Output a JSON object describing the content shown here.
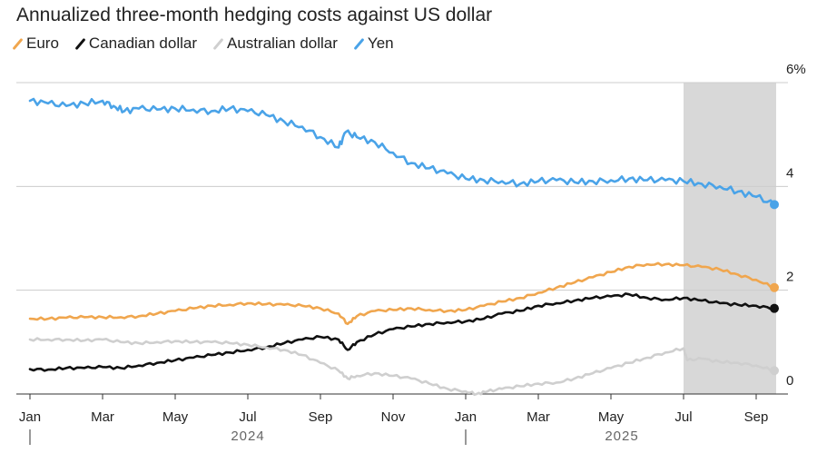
{
  "title": "Annualized three-month hedging costs against US dollar",
  "legend": [
    {
      "label": "Euro",
      "color": "#f0a64e"
    },
    {
      "label": "Canadian dollar",
      "color": "#111111"
    },
    {
      "label": "Australian dollar",
      "color": "#cfcfcf"
    },
    {
      "label": "Yen",
      "color": "#4aa3e8"
    }
  ],
  "colors": {
    "shade": "#d8d8d8",
    "grid": "#cccccc",
    "axis": "#333333"
  },
  "chart_data": {
    "type": "line",
    "x_unit": "month",
    "ylim": [
      0,
      6
    ],
    "y_ticks": [
      {
        "value": 0,
        "label": "0"
      },
      {
        "value": 2,
        "label": "2"
      },
      {
        "value": 4,
        "label": "4"
      },
      {
        "value": 6,
        "label": "6%"
      }
    ],
    "x_ticks": [
      {
        "x": 0,
        "label": "Jan"
      },
      {
        "x": 2,
        "label": "Mar"
      },
      {
        "x": 4,
        "label": "May"
      },
      {
        "x": 6,
        "label": "Jul"
      },
      {
        "x": 8,
        "label": "Sep"
      },
      {
        "x": 10,
        "label": "Nov"
      },
      {
        "x": 12,
        "label": "Jan"
      },
      {
        "x": 14,
        "label": "Mar"
      },
      {
        "x": 16,
        "label": "May"
      },
      {
        "x": 18,
        "label": "Jul"
      },
      {
        "x": 20,
        "label": "Sep"
      }
    ],
    "year_labels": [
      {
        "x": 6,
        "label": "2024"
      },
      {
        "x": 16.3,
        "label": "2025"
      }
    ],
    "year_dividers": [
      0,
      12
    ],
    "x_domain": [
      -0.1,
      20.6
    ],
    "shaded_range": [
      18.0,
      20.55
    ],
    "series": [
      {
        "name": "Yen",
        "color": "#4aa3e8",
        "x": [
          0,
          0.5,
          1,
          1.5,
          2,
          2.3,
          2.6,
          3,
          3.5,
          4,
          4.5,
          5,
          5.5,
          6,
          6.5,
          7,
          7.5,
          8,
          8.5,
          8.7,
          9,
          9.5,
          10,
          10.5,
          11,
          11.5,
          12,
          12.5,
          13,
          13.5,
          14,
          14.5,
          15,
          15.5,
          16,
          16.5,
          17,
          17.5,
          18,
          18.5,
          19,
          19.5,
          20,
          20.5
        ],
        "y": [
          5.65,
          5.6,
          5.55,
          5.6,
          5.65,
          5.55,
          5.45,
          5.5,
          5.48,
          5.5,
          5.48,
          5.45,
          5.5,
          5.45,
          5.38,
          5.25,
          5.15,
          4.95,
          4.75,
          5.05,
          4.95,
          4.85,
          4.65,
          4.45,
          4.35,
          4.25,
          4.15,
          4.12,
          4.1,
          4.05,
          4.1,
          4.12,
          4.08,
          4.1,
          4.12,
          4.15,
          4.12,
          4.12,
          4.1,
          4.05,
          4.0,
          3.9,
          3.8,
          3.65
        ]
      },
      {
        "name": "Euro",
        "color": "#f0a64e",
        "x": [
          0,
          0.5,
          1,
          1.5,
          2,
          2.5,
          3,
          3.5,
          4,
          4.5,
          5,
          5.5,
          6,
          6.5,
          7,
          7.5,
          8,
          8.5,
          8.75,
          9,
          9.5,
          10,
          10.5,
          11,
          11.5,
          12,
          12.5,
          13,
          13.5,
          14,
          14.5,
          15,
          15.5,
          16,
          16.5,
          17,
          17.5,
          18,
          18.5,
          19,
          19.5,
          20,
          20.5
        ],
        "y": [
          1.45,
          1.45,
          1.47,
          1.48,
          1.48,
          1.48,
          1.5,
          1.55,
          1.6,
          1.65,
          1.7,
          1.72,
          1.75,
          1.73,
          1.72,
          1.7,
          1.65,
          1.55,
          1.35,
          1.5,
          1.6,
          1.62,
          1.65,
          1.62,
          1.6,
          1.62,
          1.7,
          1.78,
          1.85,
          1.95,
          2.05,
          2.15,
          2.25,
          2.35,
          2.45,
          2.5,
          2.5,
          2.48,
          2.45,
          2.4,
          2.3,
          2.2,
          2.05
        ]
      },
      {
        "name": "Canadian dollar",
        "color": "#111111",
        "x": [
          0,
          0.5,
          1,
          1.5,
          2,
          2.5,
          3,
          3.5,
          4,
          4.5,
          5,
          5.5,
          6,
          6.5,
          7,
          7.5,
          8,
          8.5,
          8.75,
          9,
          9.5,
          10,
          10.5,
          11,
          11.5,
          12,
          12.5,
          13,
          13.5,
          14,
          14.5,
          15,
          15.5,
          16,
          16.5,
          17,
          17.5,
          18,
          18.5,
          19,
          19.5,
          20,
          20.5
        ],
        "y": [
          0.48,
          0.47,
          0.5,
          0.5,
          0.52,
          0.5,
          0.55,
          0.6,
          0.65,
          0.7,
          0.75,
          0.8,
          0.85,
          0.9,
          0.98,
          1.05,
          1.1,
          1.05,
          0.85,
          1.0,
          1.15,
          1.25,
          1.3,
          1.35,
          1.38,
          1.4,
          1.45,
          1.55,
          1.6,
          1.7,
          1.75,
          1.8,
          1.85,
          1.88,
          1.92,
          1.85,
          1.82,
          1.85,
          1.8,
          1.75,
          1.72,
          1.7,
          1.65
        ]
      },
      {
        "name": "Australian dollar",
        "color": "#cfcfcf",
        "x": [
          0,
          0.5,
          1,
          1.5,
          2,
          2.5,
          3,
          3.5,
          4,
          4.5,
          5,
          5.5,
          6,
          6.5,
          7,
          7.5,
          8,
          8.5,
          8.75,
          9,
          9.5,
          10,
          10.5,
          11,
          11.5,
          12,
          12.3,
          12.6,
          13,
          13.5,
          14,
          14.5,
          15,
          15.5,
          16,
          16.5,
          17,
          17.5,
          18,
          18.1,
          18.5,
          19,
          19.5,
          20,
          20.5
        ],
        "y": [
          1.05,
          1.05,
          1.05,
          1.03,
          1.05,
          1.0,
          0.98,
          1.0,
          1.02,
          1.0,
          1.0,
          0.98,
          0.95,
          0.9,
          0.85,
          0.75,
          0.6,
          0.45,
          0.3,
          0.35,
          0.4,
          0.35,
          0.3,
          0.2,
          0.1,
          0.05,
          0.0,
          0.05,
          0.1,
          0.15,
          0.2,
          0.22,
          0.3,
          0.4,
          0.5,
          0.6,
          0.7,
          0.8,
          0.88,
          0.65,
          0.68,
          0.62,
          0.6,
          0.55,
          0.45
        ]
      }
    ]
  }
}
